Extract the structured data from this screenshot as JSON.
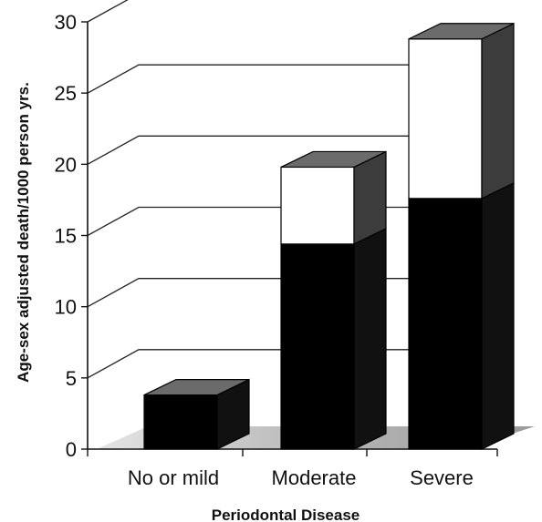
{
  "chart_data": {
    "type": "bar",
    "stacked": true,
    "three_d": true,
    "categories": [
      "No or mild",
      "Moderate",
      "Severe"
    ],
    "series": [
      {
        "values": [
          3.8,
          14.4,
          17.6
        ],
        "color": "#000000"
      },
      {
        "values": [
          0,
          5.4,
          11.2
        ],
        "color": "#ffffff"
      }
    ],
    "ylabel": "Age-sex adjusted death/1000 person yrs.",
    "xlabel": "Periodontal Disease",
    "ylim": [
      0,
      30
    ],
    "yticks": [
      0,
      5,
      10,
      15,
      20,
      25,
      30
    ],
    "grid": true,
    "legend": "none",
    "colors": {
      "bar_top": "#6b6b6b",
      "bar_side": "#3c3c3c",
      "floor": "#c8c8c8",
      "gridline": "#222222"
    }
  }
}
